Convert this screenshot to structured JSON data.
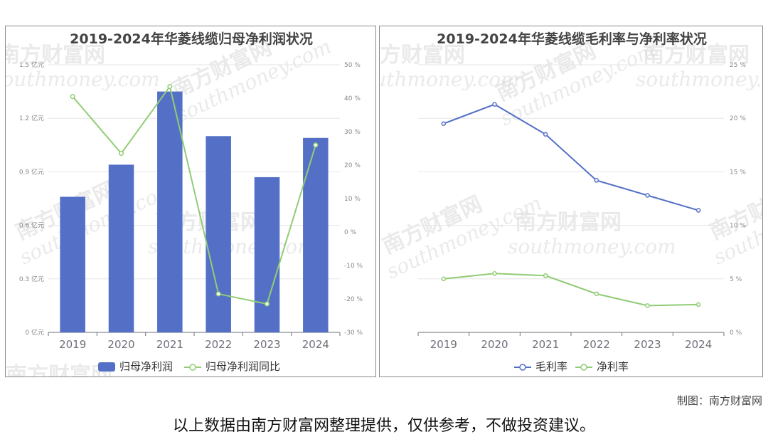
{
  "charts": {
    "left": {
      "title": "2019-2024年华菱线缆归母净利润状况",
      "left_axis_ticks": [
        "1.5 亿元",
        "1.2 亿元",
        "0.9 亿元",
        "0.6 亿元",
        "0.3 亿元",
        "0 亿元"
      ],
      "right_axis_ticks": [
        "50 %",
        "40 %",
        "30 %",
        "20 %",
        "10 %",
        "0 %",
        "-10 %",
        "-20 %",
        "-30 %"
      ],
      "legend": [
        "归母净利润",
        "归母净利润同比"
      ]
    },
    "right": {
      "title": "2019-2024年华菱线缆毛利率与净利率状况",
      "right_axis_ticks": [
        "25 %",
        "20 %",
        "15 %",
        "10 %",
        "5 %",
        "0 %"
      ],
      "legend": [
        "毛利率",
        "净利率"
      ]
    }
  },
  "chart_data": [
    {
      "type": "bar",
      "title": "2019-2024年华菱线缆归母净利润状况",
      "categories": [
        "2019",
        "2020",
        "2021",
        "2022",
        "2023",
        "2024"
      ],
      "series": [
        {
          "name": "归母净利润",
          "type": "bar",
          "axis": "left",
          "unit": "亿元",
          "values": [
            0.76,
            0.94,
            1.35,
            1.1,
            0.87,
            1.09
          ]
        },
        {
          "name": "归母净利润同比",
          "type": "line",
          "axis": "right",
          "unit": "%",
          "values": [
            40.5,
            23.5,
            43.5,
            -18.5,
            -21.5,
            26.0
          ]
        }
      ],
      "ylim_left": [
        0,
        1.5
      ],
      "ylim_right": [
        -30,
        50
      ],
      "grid": true,
      "legend_position": "bottom"
    },
    {
      "type": "line",
      "title": "2019-2024年华菱线缆毛利率与净利率状况",
      "categories": [
        "2019",
        "2020",
        "2021",
        "2022",
        "2023",
        "2024"
      ],
      "series": [
        {
          "name": "毛利率",
          "unit": "%",
          "values": [
            19.5,
            21.3,
            18.5,
            14.2,
            12.8,
            11.4
          ]
        },
        {
          "name": "净利率",
          "unit": "%",
          "values": [
            5.0,
            5.5,
            5.3,
            3.6,
            2.5,
            2.6
          ]
        }
      ],
      "ylim": [
        0,
        25
      ],
      "grid": true,
      "legend_position": "bottom"
    }
  ],
  "colors": {
    "bar": "#5470c6",
    "yoy_line": "#91cc75",
    "gross_margin": "#5470c6",
    "net_margin": "#91cc75",
    "grid": "#e6e6e6",
    "axis_text": "#888888"
  },
  "watermark": {
    "cn": "南方财富网",
    "en": "southmoney.com"
  },
  "footer": {
    "credit": "制图：南方财富网",
    "disclaimer": "以上数据由南方财富网整理提供，仅供参考，不做投资建议。"
  }
}
